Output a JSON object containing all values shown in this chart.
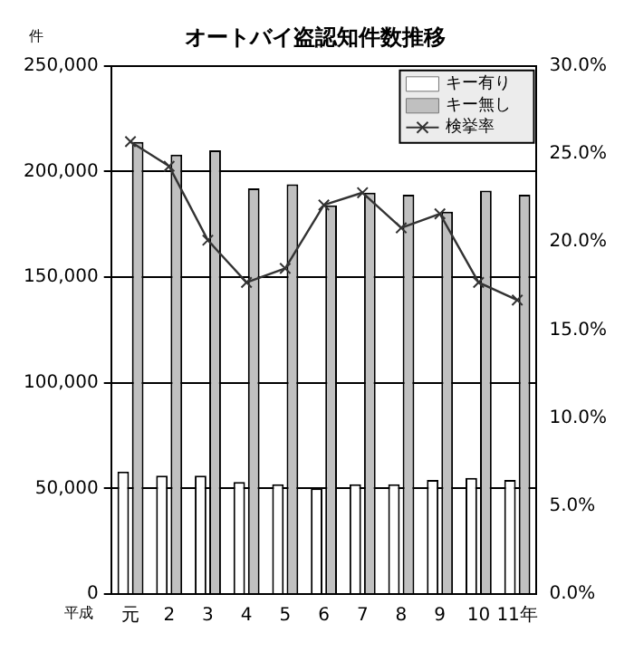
{
  "chart_data": {
    "type": "bar",
    "title": "オートバイ盗認知件数推移",
    "categories": [
      "元",
      "2",
      "3",
      "4",
      "5",
      "6",
      "7",
      "8",
      "9",
      "10",
      "11年"
    ],
    "series": [
      {
        "name": "キー有り",
        "color": "#ffffff",
        "values": [
          58000,
          56000,
          56000,
          53000,
          52000,
          50000,
          52000,
          52000,
          54000,
          55000,
          54000
        ]
      },
      {
        "name": "キー無し",
        "color": "#c0c0c0",
        "values": [
          214000,
          208000,
          210000,
          192000,
          194000,
          184000,
          190000,
          189000,
          181000,
          191000,
          189000
        ]
      },
      {
        "name": "検挙率",
        "type": "line",
        "axis": "y2",
        "color": "#333333",
        "marker": "cross",
        "values": [
          25.7,
          24.3,
          20.1,
          17.7,
          18.5,
          22.1,
          22.8,
          20.8,
          21.6,
          17.7,
          16.7
        ]
      }
    ],
    "ylim": [
      0,
      250000
    ],
    "yticks": [
      0,
      {
        "value": 50000,
        "label": "50,000"
      },
      {
        "value": 100000,
        "label": "100,000"
      },
      {
        "value": 150000,
        "label": "150,000"
      },
      {
        "value": 200000,
        "label": "200,000"
      },
      {
        "value": 250000,
        "label": "250,000"
      }
    ],
    "y2lim": [
      0,
      30
    ],
    "y2ticks": [
      {
        "value": 0,
        "label": "0.0%"
      },
      {
        "value": 5,
        "label": "5.0%"
      },
      {
        "value": 10,
        "label": "10.0%"
      },
      {
        "value": 15,
        "label": "15.0%"
      },
      {
        "value": 20,
        "label": "20.0%"
      },
      {
        "value": 25,
        "label": "25.0%"
      },
      {
        "value": 30,
        "label": "30.0%"
      }
    ],
    "grid": "y",
    "legend": "top right",
    "annotations": [
      "件",
      "平成"
    ]
  }
}
